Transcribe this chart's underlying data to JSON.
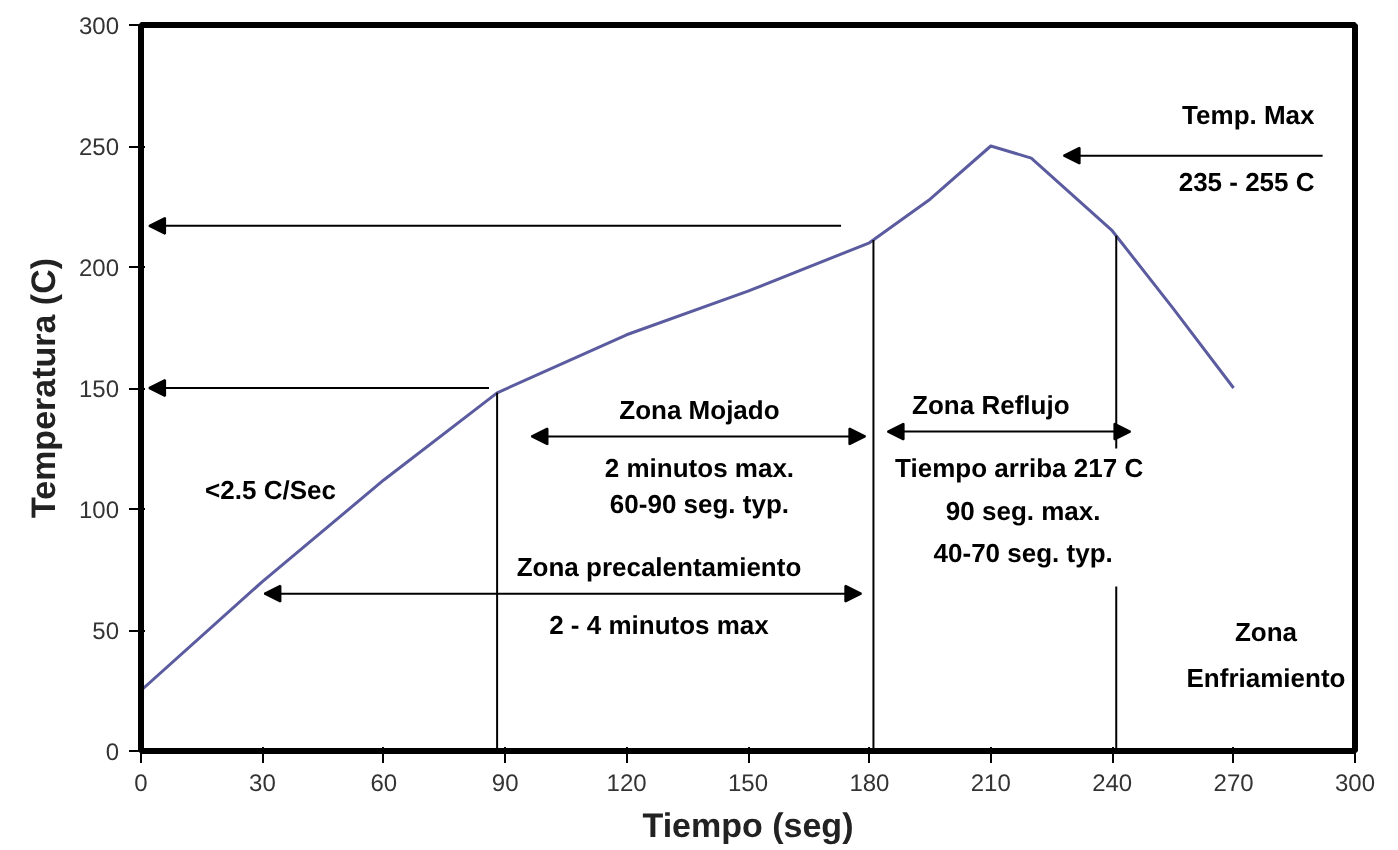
{
  "chart_data": {
    "type": "line",
    "xlabel": "Tiempo (seg)",
    "ylabel": "Temperatura (C)",
    "xlim": [
      0,
      300
    ],
    "ylim": [
      0,
      300
    ],
    "xticks": [
      0,
      30,
      60,
      90,
      120,
      150,
      180,
      210,
      240,
      270,
      300
    ],
    "yticks": [
      0,
      50,
      100,
      150,
      200,
      250,
      300
    ],
    "series": [
      {
        "color": "#5b5ba0",
        "x": [
          0,
          30,
          60,
          88,
          120,
          150,
          180,
          195,
          210,
          220,
          240,
          255,
          270
        ],
        "values": [
          25,
          70,
          112,
          148,
          172,
          190,
          210,
          228,
          250,
          245,
          215,
          183,
          150
        ]
      }
    ],
    "ref_lines": [
      {
        "axis": "x",
        "value": 88,
        "color": "#000000"
      },
      {
        "axis": "x",
        "value": 181,
        "color": "#000000"
      },
      {
        "axis": "x",
        "value": 241,
        "color": "#000000"
      }
    ],
    "annotations": [
      "Temp. Max",
      "235 - 255 C",
      "<2.5 C/Sec",
      "Zona Mojado",
      "2 minutos max.",
      "60-90 seg. typ.",
      "Zona Reflujo",
      "Tiempo arriba 217 C",
      "90 seg. max.",
      "40-70 seg. typ.",
      "Zona precalentamiento",
      "2 - 4 minutos max",
      "Zona",
      "Enfriamiento"
    ]
  }
}
